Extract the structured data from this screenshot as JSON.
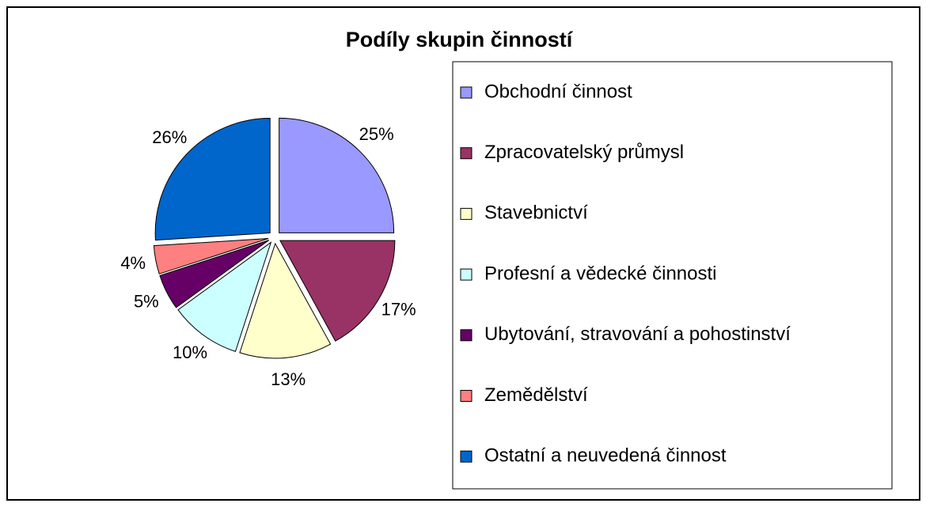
{
  "chart_data": {
    "type": "pie",
    "title": "Podíly skupin činností",
    "categories": [
      "Obchodní činnost",
      "Zpracovatelský průmysl",
      "Stavebnictví",
      "Profesní a vědecké činnosti",
      "Ubytování, stravování a pohostinství",
      "Zemědělství",
      "Ostatní a neuvedená činnost"
    ],
    "values": [
      25,
      17,
      13,
      10,
      5,
      4,
      26
    ],
    "value_labels": [
      "25%",
      "17%",
      "13%",
      "10%",
      "5%",
      "4%",
      "26%"
    ],
    "colors": [
      "#9999ff",
      "#993366",
      "#ffffcc",
      "#ccffff",
      "#660066",
      "#ff8080",
      "#0066cc"
    ],
    "legend": "right"
  }
}
